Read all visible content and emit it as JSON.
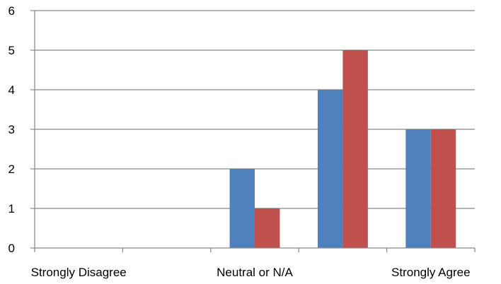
{
  "chart_data": {
    "type": "bar",
    "categories": [
      "Strongly Disagree",
      "",
      "Neutral or N/A",
      "",
      "Strongly Agree"
    ],
    "series": [
      {
        "values": [
          0,
          0,
          2,
          4,
          3
        ],
        "color": "#4F81BD"
      },
      {
        "values": [
          0,
          0,
          1,
          5,
          3
        ],
        "color": "#C0504D"
      }
    ],
    "ylim": [
      0,
      6
    ],
    "yticks": [
      0,
      1,
      2,
      3,
      4,
      5,
      6
    ],
    "grid": true,
    "legend": "none"
  }
}
